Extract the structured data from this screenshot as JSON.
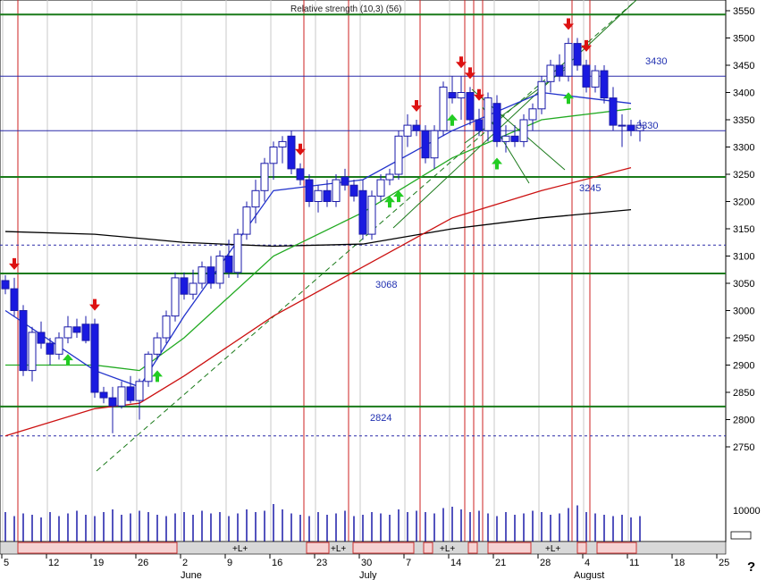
{
  "chart_data": {
    "type": "candlestick",
    "header_text": "Relative strength (10,3) (56)",
    "y_ticks": [
      3550,
      3500,
      3450,
      3400,
      3350,
      3300,
      3250,
      3200,
      3150,
      3100,
      3050,
      3000,
      2950,
      2900,
      2850,
      2800,
      2750
    ],
    "volume_label": "10000",
    "x_ticks": [
      {
        "label": "5",
        "day": 0
      },
      {
        "label": "12",
        "day": 5
      },
      {
        "label": "19",
        "day": 10
      },
      {
        "label": "26",
        "day": 15
      },
      {
        "label": "2",
        "day": 20
      },
      {
        "label": "9",
        "day": 25
      },
      {
        "label": "16",
        "day": 30
      },
      {
        "label": "23",
        "day": 35
      },
      {
        "label": "30",
        "day": 40
      },
      {
        "label": "7",
        "day": 45
      },
      {
        "label": "14",
        "day": 50
      },
      {
        "label": "21",
        "day": 55
      },
      {
        "label": "28",
        "day": 60
      },
      {
        "label": "4",
        "day": 65
      },
      {
        "label": "11",
        "day": 70
      },
      {
        "label": "18",
        "day": 75
      },
      {
        "label": "25",
        "day": 80
      }
    ],
    "month_labels": [
      {
        "label": "June",
        "day": 20
      },
      {
        "label": "July",
        "day": 40
      },
      {
        "label": "August",
        "day": 64
      }
    ],
    "horizontal_levels": [
      {
        "value": 3543,
        "color": "#1a7a1a",
        "style": "solid"
      },
      {
        "value": 3430,
        "color": "#2a2aa8",
        "style": "thin",
        "label": "3430"
      },
      {
        "value": 3330,
        "color": "#2a2aa8",
        "style": "thin",
        "label": "3330"
      },
      {
        "value": 3245,
        "color": "#1a7a1a",
        "style": "solid",
        "label": "3245"
      },
      {
        "value": 3120,
        "color": "#2a2aa8",
        "style": "dashed"
      },
      {
        "value": 3068,
        "color": "#1a7a1a",
        "style": "solid",
        "label": "3068"
      },
      {
        "value": 2824,
        "color": "#1a7a1a",
        "style": "solid",
        "label": "2824"
      },
      {
        "value": 2770,
        "color": "#2a2aa8",
        "style": "dashed"
      }
    ],
    "red_vlines": [
      1,
      33,
      38,
      46,
      51,
      52,
      53,
      63,
      65
    ],
    "gray_vlines": [
      0,
      5,
      10,
      15,
      20,
      25,
      30,
      35,
      40,
      45,
      50,
      55,
      60,
      65,
      70
    ],
    "candles": [
      [
        3055,
        3065,
        3030,
        3040
      ],
      [
        3040,
        3060,
        2990,
        3000
      ],
      [
        3000,
        3010,
        2880,
        2890
      ],
      [
        2890,
        2970,
        2870,
        2960
      ],
      [
        2960,
        2980,
        2930,
        2940
      ],
      [
        2940,
        2950,
        2900,
        2920
      ],
      [
        2920,
        2960,
        2910,
        2950
      ],
      [
        2950,
        2990,
        2940,
        2970
      ],
      [
        2970,
        2985,
        2950,
        2960
      ],
      [
        2975,
        2990,
        2940,
        2945
      ],
      [
        2975,
        2985,
        2840,
        2850
      ],
      [
        2850,
        2860,
        2830,
        2840
      ],
      [
        2840,
        2860,
        2775,
        2825
      ],
      [
        2825,
        2870,
        2820,
        2860
      ],
      [
        2860,
        2880,
        2830,
        2835
      ],
      [
        2835,
        2875,
        2800,
        2870
      ],
      [
        2870,
        2925,
        2860,
        2920
      ],
      [
        2920,
        2960,
        2910,
        2950
      ],
      [
        2950,
        3000,
        2940,
        2990
      ],
      [
        2990,
        3070,
        2980,
        3060
      ],
      [
        3060,
        3070,
        3020,
        3030
      ],
      [
        3030,
        3075,
        3020,
        3050
      ],
      [
        3050,
        3090,
        3040,
        3080
      ],
      [
        3080,
        3100,
        3040,
        3050
      ],
      [
        3050,
        3110,
        3040,
        3100
      ],
      [
        3100,
        3130,
        3060,
        3070
      ],
      [
        3070,
        3150,
        3060,
        3140
      ],
      [
        3140,
        3200,
        3130,
        3190
      ],
      [
        3190,
        3240,
        3160,
        3220
      ],
      [
        3220,
        3280,
        3200,
        3270
      ],
      [
        3270,
        3310,
        3240,
        3300
      ],
      [
        3300,
        3320,
        3270,
        3310
      ],
      [
        3320,
        3330,
        3250,
        3260
      ],
      [
        3260,
        3270,
        3230,
        3240
      ],
      [
        3240,
        3250,
        3190,
        3200
      ],
      [
        3200,
        3230,
        3180,
        3220
      ],
      [
        3220,
        3240,
        3190,
        3200
      ],
      [
        3200,
        3250,
        3190,
        3240
      ],
      [
        3245,
        3260,
        3220,
        3230
      ],
      [
        3230,
        3240,
        3200,
        3210
      ],
      [
        3220,
        3240,
        3130,
        3140
      ],
      [
        3140,
        3220,
        3130,
        3210
      ],
      [
        3210,
        3250,
        3200,
        3240
      ],
      [
        3240,
        3260,
        3230,
        3250
      ],
      [
        3250,
        3330,
        3240,
        3320
      ],
      [
        3320,
        3360,
        3300,
        3340
      ],
      [
        3340,
        3350,
        3320,
        3330
      ],
      [
        3330,
        3340,
        3270,
        3280
      ],
      [
        3280,
        3340,
        3260,
        3330
      ],
      [
        3330,
        3420,
        3320,
        3410
      ],
      [
        3400,
        3430,
        3380,
        3390
      ],
      [
        3390,
        3430,
        3350,
        3400
      ],
      [
        3400,
        3410,
        3340,
        3350
      ],
      [
        3350,
        3370,
        3320,
        3330
      ],
      [
        3330,
        3400,
        3310,
        3390
      ],
      [
        3380,
        3395,
        3300,
        3310
      ],
      [
        3310,
        3340,
        3290,
        3320
      ],
      [
        3320,
        3340,
        3300,
        3310
      ],
      [
        3310,
        3360,
        3300,
        3350
      ],
      [
        3350,
        3380,
        3330,
        3370
      ],
      [
        3370,
        3430,
        3360,
        3420
      ],
      [
        3420,
        3460,
        3400,
        3450
      ],
      [
        3450,
        3470,
        3420,
        3430
      ],
      [
        3430,
        3500,
        3420,
        3490
      ],
      [
        3490,
        3500,
        3440,
        3450
      ],
      [
        3450,
        3460,
        3400,
        3410
      ],
      [
        3410,
        3450,
        3400,
        3440
      ],
      [
        3440,
        3450,
        3380,
        3390
      ],
      [
        3390,
        3410,
        3330,
        3340
      ],
      [
        3340,
        3360,
        3300,
        3340
      ],
      [
        3340,
        3350,
        3320,
        3330
      ],
      [
        3330,
        3350,
        3310,
        3340
      ]
    ],
    "sell_arrows": [
      1,
      10,
      33,
      46,
      51,
      52,
      53,
      63,
      65
    ],
    "buy_arrows": [
      7,
      17,
      43,
      44,
      50,
      55,
      63
    ],
    "moving_averages": [
      {
        "color": "#000000",
        "points": [
          [
            0,
            3145
          ],
          [
            10,
            3140
          ],
          [
            20,
            3125
          ],
          [
            30,
            3118
          ],
          [
            40,
            3122
          ],
          [
            50,
            3150
          ],
          [
            60,
            3170
          ],
          [
            70,
            3185
          ]
        ]
      },
      {
        "color": "#cc1111",
        "points": [
          [
            0,
            2770
          ],
          [
            10,
            2820
          ],
          [
            15,
            2830
          ],
          [
            20,
            2880
          ],
          [
            30,
            2990
          ],
          [
            40,
            3080
          ],
          [
            50,
            3170
          ],
          [
            60,
            3220
          ],
          [
            70,
            3262
          ]
        ]
      },
      {
        "color": "#22aa22",
        "points": [
          [
            0,
            2900
          ],
          [
            10,
            2900
          ],
          [
            15,
            2890
          ],
          [
            20,
            2950
          ],
          [
            30,
            3100
          ],
          [
            40,
            3180
          ],
          [
            50,
            3280
          ],
          [
            60,
            3350
          ],
          [
            70,
            3370
          ]
        ]
      },
      {
        "color": "#2233cc",
        "points": [
          [
            0,
            3000
          ],
          [
            10,
            2890
          ],
          [
            15,
            2860
          ],
          [
            20,
            2990
          ],
          [
            30,
            3220
          ],
          [
            40,
            3240
          ],
          [
            50,
            3330
          ],
          [
            60,
            3400
          ],
          [
            70,
            3380
          ]
        ]
      }
    ],
    "volume": [
      22,
      19,
      21,
      20,
      18,
      22,
      19,
      21,
      23,
      20,
      19,
      22,
      24,
      20,
      21,
      23,
      22,
      20,
      19,
      21,
      22,
      20,
      23,
      21,
      22,
      19,
      21,
      24,
      22,
      23,
      28,
      24,
      21,
      20,
      19,
      22,
      20,
      21,
      23,
      19,
      20,
      22,
      21,
      20,
      24,
      22,
      23,
      22,
      21,
      25,
      26,
      24,
      22,
      23,
      21,
      19,
      22,
      20,
      21,
      23,
      22,
      20,
      21,
      25,
      27,
      22,
      21,
      20,
      19,
      20,
      18,
      19
    ]
  },
  "strip_marker": "+L+"
}
